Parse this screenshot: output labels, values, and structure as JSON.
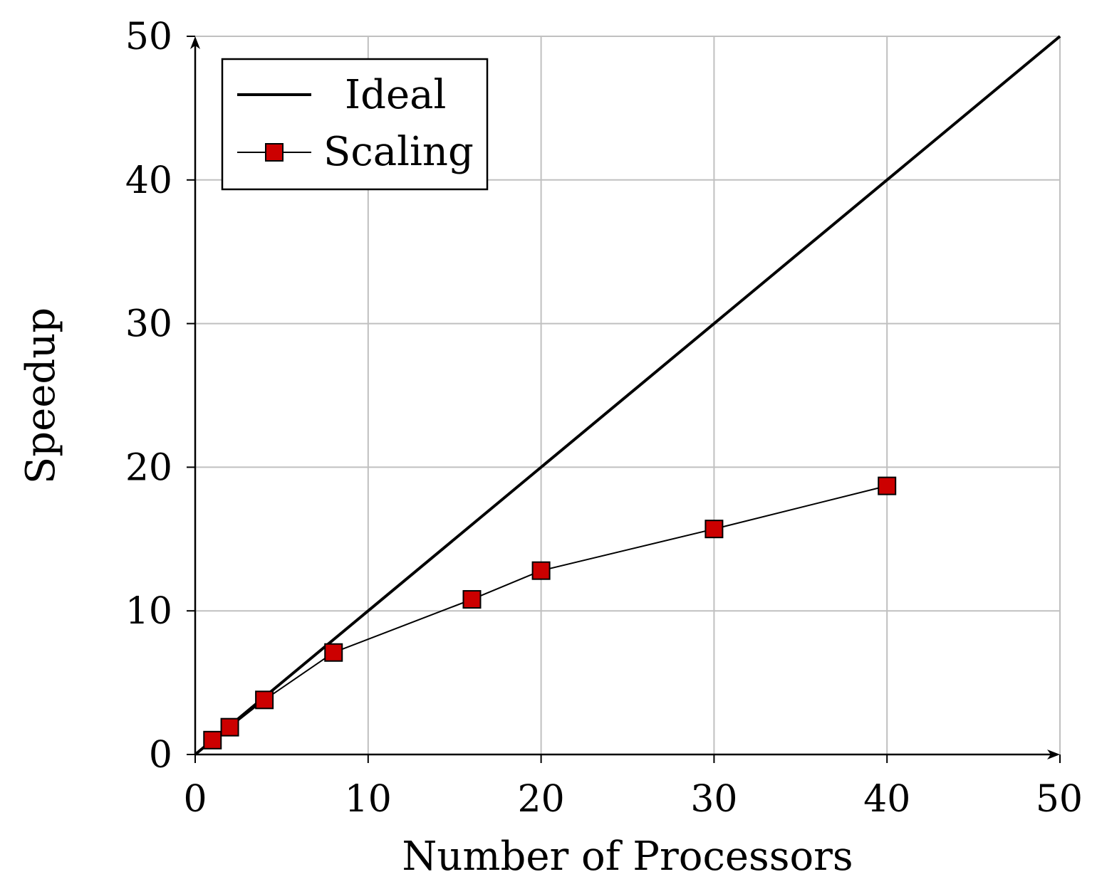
{
  "chart_data": {
    "type": "line",
    "xlabel": "Number of Processors",
    "ylabel": "Speedup",
    "xlim": [
      0,
      50
    ],
    "ylim": [
      0,
      50
    ],
    "x_ticks": [
      0,
      10,
      20,
      30,
      40,
      50
    ],
    "y_ticks": [
      0,
      10,
      20,
      30,
      40,
      50
    ],
    "x_tick_labels": [
      "0",
      "10",
      "20",
      "30",
      "40",
      "50"
    ],
    "y_tick_labels": [
      "0",
      "10",
      "20",
      "30",
      "40",
      "50"
    ],
    "grid": true,
    "legend_position": "top-left",
    "series": [
      {
        "name": "Ideal",
        "style": "line",
        "color": "#000000",
        "x": [
          0,
          50
        ],
        "y": [
          0,
          50
        ]
      },
      {
        "name": "Scaling",
        "style": "line-square-markers",
        "color": "#000000",
        "marker_color": "#cc0000",
        "x": [
          1,
          2,
          4,
          8,
          16,
          20,
          30,
          40
        ],
        "y": [
          1.0,
          1.9,
          3.8,
          7.1,
          10.8,
          12.8,
          15.7,
          18.7
        ]
      }
    ]
  }
}
